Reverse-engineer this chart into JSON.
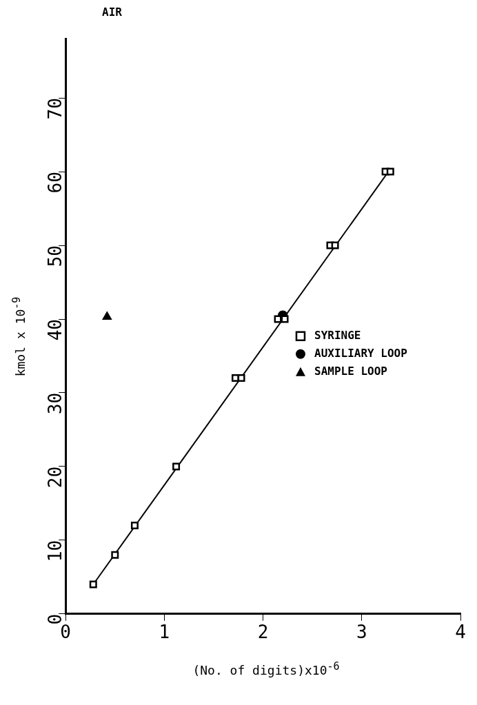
{
  "chart_data": {
    "type": "scatter",
    "title": "AIR",
    "xlabel": "(No. of digits)x10$^{-6}$",
    "ylabel": "kmol x 10$^{-9}$",
    "xlim": [
      0,
      4
    ],
    "ylim": [
      0,
      78
    ],
    "xticks": [
      0,
      1,
      2,
      3,
      4
    ],
    "yticks": [
      0,
      10,
      20,
      30,
      40,
      50,
      60,
      70
    ],
    "grid": false,
    "legend": "center right",
    "series": [
      {
        "name": "SYRINGE",
        "marker": "square",
        "color": "#000000",
        "x": [
          0.28,
          0.5,
          0.7,
          1.12,
          1.72,
          1.78,
          2.15,
          2.22,
          2.68,
          2.73,
          3.24,
          3.29
        ],
        "values": [
          4,
          8,
          12,
          20,
          32,
          32,
          40,
          40,
          50,
          50,
          60,
          60
        ]
      },
      {
        "name": "AUXILIARY LOOP",
        "marker": "circle",
        "color": "#000000",
        "x": [
          2.2
        ],
        "values": [
          40.5
        ]
      },
      {
        "name": "SAMPLE LOOP",
        "marker": "triangle",
        "color": "#000000",
        "x": [
          0.42
        ],
        "values": [
          40.3
        ]
      },
      {
        "type": "line",
        "marker": "none",
        "color": "#000000",
        "x": [
          0.28,
          3.27
        ],
        "values": [
          4,
          60
        ]
      }
    ]
  }
}
